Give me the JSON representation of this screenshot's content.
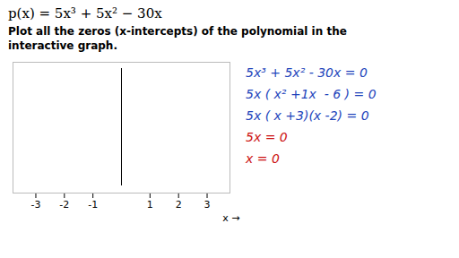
{
  "chart_data": {
    "type": "number_line",
    "title": "p(x) = 5x³ + 5x² − 30x",
    "subtitle": "Plot all the zeros (x-intercepts) of the polynomial in the\ninteractive graph.",
    "x_label": "x",
    "xlim": [
      -3.8,
      3.8
    ],
    "xticks": [
      -3,
      -2,
      -1,
      1,
      2,
      3
    ],
    "ylim": [
      -0.6,
      1.0
    ],
    "tick_labels": "x",
    "annotations": [
      {
        "text": "5x³ + 5x² - 30x = 0",
        "color": "#2244bb"
      },
      {
        "text": "5x ( x² +1x  - 6 ) = 0",
        "color": "#2244bb"
      },
      {
        "text": "5x ( x +3)(x -2) = 0",
        "color": "#2244bb"
      },
      {
        "text": "5x = 0",
        "color": "#cc1111"
      },
      {
        "text": "x = 0",
        "color": "#cc1111"
      }
    ]
  }
}
